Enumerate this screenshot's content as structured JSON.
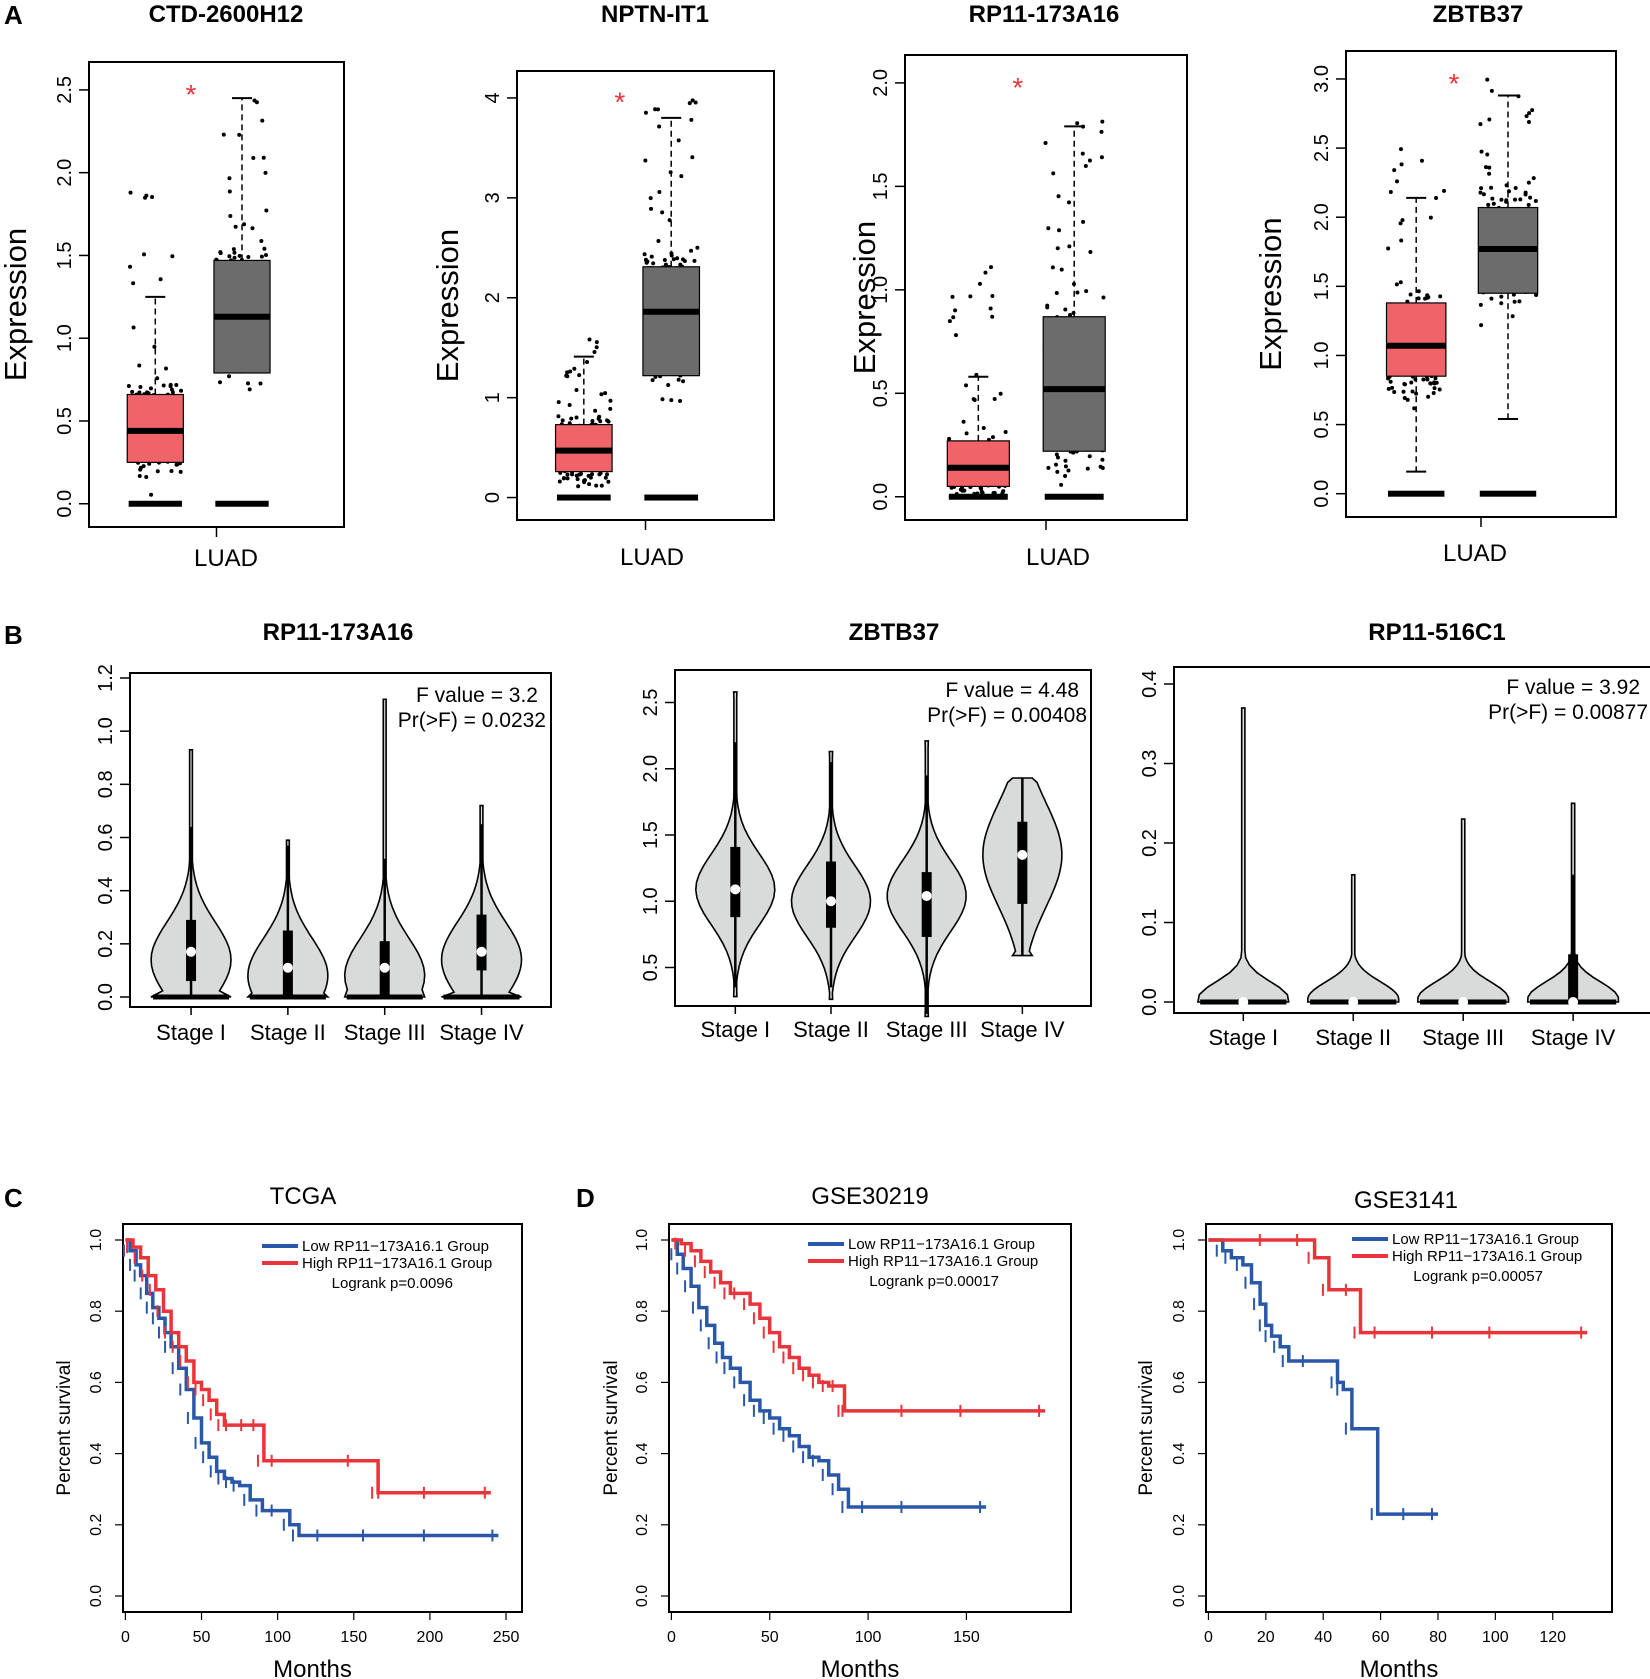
{
  "panel_letters": [
    "A",
    "B",
    "C",
    "D"
  ],
  "colors": {
    "tumor": "#f06469",
    "normal": "#6c6c6c",
    "violin": "#d9dada",
    "low_group": "#2a58a8",
    "high_group": "#e8343a",
    "star": "#e8343a"
  },
  "chart_data": [
    {
      "type": "box",
      "title": "CTD-2600H12",
      "xlabel": "LUAD",
      "ylabel": "Expression",
      "ylim": [
        0,
        2.5
      ],
      "yticks": [
        "0.0",
        "0.5",
        "1.0",
        "1.5",
        "2.0",
        "2.5"
      ],
      "significance": "*",
      "boxes": [
        {
          "group": "Tumor",
          "q1": 0.25,
          "median": 0.44,
          "q3": 0.66,
          "whisker_high": 1.25,
          "max_outlier": 1.95
        },
        {
          "group": "Normal",
          "q1": 0.79,
          "median": 1.13,
          "q3": 1.47,
          "whisker_high": 2.45,
          "max_outlier": 2.45
        }
      ]
    },
    {
      "type": "box",
      "title": "NPTN-IT1",
      "xlabel": "LUAD",
      "ylabel": "Expression",
      "ylim": [
        0,
        4
      ],
      "yticks": [
        "0",
        "1",
        "2",
        "3",
        "4"
      ],
      "significance": "*",
      "boxes": [
        {
          "group": "Tumor",
          "q1": 0.26,
          "median": 0.47,
          "q3": 0.73,
          "whisker_high": 1.41,
          "max_outlier": 1.64
        },
        {
          "group": "Normal",
          "q1": 1.22,
          "median": 1.86,
          "q3": 2.31,
          "whisker_high": 3.8,
          "max_outlier": 4.0
        }
      ]
    },
    {
      "type": "box",
      "title": "RP11-173A16",
      "xlabel": "LUAD",
      "ylabel": "Expression",
      "ylim": [
        0,
        2.0
      ],
      "yticks": [
        "0.0",
        "0.5",
        "1.0",
        "1.5",
        "2.0"
      ],
      "significance": "*",
      "boxes": [
        {
          "group": "Tumor",
          "q1": 0.05,
          "median": 0.14,
          "q3": 0.27,
          "whisker_high": 0.58,
          "max_outlier": 1.12
        },
        {
          "group": "Normal",
          "q1": 0.22,
          "median": 0.52,
          "q3": 0.87,
          "whisker_high": 1.79,
          "max_outlier": 1.9
        }
      ]
    },
    {
      "type": "box",
      "title": "ZBTB37",
      "xlabel": "LUAD",
      "ylabel": "Expression",
      "ylim": [
        0,
        3.0
      ],
      "yticks": [
        "0.0",
        "0.5",
        "1.0",
        "1.5",
        "2.0",
        "2.5",
        "3.0"
      ],
      "significance": "*",
      "boxes": [
        {
          "group": "Tumor",
          "q1": 0.85,
          "median": 1.07,
          "q3": 1.38,
          "whisker_low": 0.16,
          "whisker_high": 2.14,
          "max_outlier": 2.56
        },
        {
          "group": "Normal",
          "q1": 1.45,
          "median": 1.77,
          "q3": 2.07,
          "whisker_low": 0.54,
          "whisker_high": 2.88,
          "max_outlier": 3.02
        }
      ]
    },
    {
      "type": "violin",
      "title": "RP11-173A16",
      "f_value": "F value = 3.2",
      "p_value": "Pr(>F) = 0.0232",
      "ylim": [
        0,
        1.2
      ],
      "yticks": [
        "0.0",
        "0.2",
        "0.4",
        "0.6",
        "0.8",
        "1.0",
        "1.2"
      ],
      "categories": [
        "Stage I",
        "Stage II",
        "Stage III",
        "Stage IV"
      ],
      "violins": [
        {
          "min": 0.0,
          "max": 0.93,
          "median": 0.17,
          "q1": 0.06,
          "q3": 0.29,
          "whisker_high": 0.64
        },
        {
          "min": 0.0,
          "max": 0.59,
          "median": 0.11,
          "q1": 0.0,
          "q3": 0.25,
          "whisker_high": 0.57
        },
        {
          "min": 0.0,
          "max": 1.12,
          "median": 0.11,
          "q1": 0.0,
          "q3": 0.21,
          "whisker_high": 0.52
        },
        {
          "min": 0.0,
          "max": 0.72,
          "median": 0.17,
          "q1": 0.1,
          "q3": 0.31,
          "whisker_high": 0.65
        }
      ]
    },
    {
      "type": "violin",
      "title": "ZBTB37",
      "f_value": "F value = 4.48",
      "p_value": "Pr(>F) = 0.00408",
      "ylim": [
        0.3,
        2.7
      ],
      "yticks": [
        "0.5",
        "1.0",
        "1.5",
        "2.0",
        "2.5"
      ],
      "categories": [
        "Stage I",
        "Stage II",
        "Stage III",
        "Stage IV"
      ],
      "violins": [
        {
          "min": 0.28,
          "max": 2.58,
          "median": 1.09,
          "q1": 0.88,
          "q3": 1.41,
          "whisker_low": 0.35,
          "whisker_high": 2.2
        },
        {
          "min": 0.26,
          "max": 2.13,
          "median": 1.0,
          "q1": 0.8,
          "q3": 1.3,
          "whisker_low": 0.35,
          "whisker_high": 2.05
        },
        {
          "min": 0.13,
          "max": 2.21,
          "median": 1.04,
          "q1": 0.73,
          "q3": 1.22,
          "whisker_low": 0.2,
          "whisker_high": 1.95
        },
        {
          "min": 0.59,
          "max": 1.93,
          "median": 1.35,
          "q1": 0.98,
          "q3": 1.6,
          "whisker_low": 0.59,
          "whisker_high": 1.93
        }
      ]
    },
    {
      "type": "violin",
      "title": "RP11-516C1",
      "f_value": "F value = 3.92",
      "p_value": "Pr(>F) = 0.00877",
      "ylim": [
        0,
        0.4
      ],
      "yticks": [
        "0.0",
        "0.1",
        "0.2",
        "0.3",
        "0.4"
      ],
      "categories": [
        "Stage I",
        "Stage II",
        "Stage III",
        "Stage IV"
      ],
      "violins": [
        {
          "min": 0.0,
          "max": 0.37,
          "median": 0.0,
          "q1": 0.0,
          "q3": 0.0,
          "whisker_high": 0.0
        },
        {
          "min": 0.0,
          "max": 0.16,
          "median": 0.0,
          "q1": 0.0,
          "q3": 0.0,
          "whisker_high": 0.0
        },
        {
          "min": 0.0,
          "max": 0.23,
          "median": 0.0,
          "q1": 0.0,
          "q3": 0.0,
          "whisker_high": 0.0
        },
        {
          "min": 0.0,
          "max": 0.25,
          "median": 0.0,
          "q1": 0.0,
          "q3": 0.06,
          "whisker_high": 0.16
        }
      ]
    },
    {
      "type": "line",
      "subtype": "kaplan-meier",
      "title": "TCGA",
      "xlabel": "Months",
      "ylabel": "Percent survival",
      "xlim": [
        0,
        250
      ],
      "ylim": [
        0,
        1
      ],
      "xticks": [
        "0",
        "50",
        "100",
        "150",
        "200",
        "250"
      ],
      "yticks": [
        "0.0",
        "0.2",
        "0.4",
        "0.6",
        "0.8",
        "1.0"
      ],
      "logrank": "Logrank p=0.0096",
      "series": [
        {
          "name": "Low RP11−173A16.1 Group",
          "times": [
            0,
            3,
            7,
            10,
            14,
            18,
            22,
            26,
            30,
            35,
            40,
            45,
            50,
            55,
            60,
            65,
            70,
            75,
            82,
            90,
            100,
            108,
            114,
            130,
            160,
            200,
            245
          ],
          "survival": [
            1.0,
            0.97,
            0.93,
            0.9,
            0.85,
            0.81,
            0.78,
            0.74,
            0.7,
            0.64,
            0.58,
            0.5,
            0.43,
            0.39,
            0.35,
            0.33,
            0.32,
            0.31,
            0.27,
            0.24,
            0.24,
            0.2,
            0.17,
            0.17,
            0.17,
            0.17,
            0.17
          ]
        },
        {
          "name": "High RP11−173A16.1 Group",
          "times": [
            0,
            5,
            10,
            15,
            20,
            25,
            30,
            35,
            40,
            45,
            50,
            55,
            60,
            65,
            70,
            80,
            88,
            91,
            100,
            150,
            166,
            170,
            200,
            240
          ],
          "survival": [
            1.0,
            0.98,
            0.95,
            0.9,
            0.86,
            0.8,
            0.74,
            0.7,
            0.66,
            0.6,
            0.58,
            0.55,
            0.51,
            0.48,
            0.48,
            0.48,
            0.48,
            0.38,
            0.38,
            0.38,
            0.29,
            0.29,
            0.29,
            0.29
          ]
        }
      ]
    },
    {
      "type": "line",
      "subtype": "kaplan-meier",
      "title": "GSE30219",
      "xlabel": "Months",
      "ylabel": "Percent survival",
      "xlim": [
        0,
        195
      ],
      "ylim": [
        0,
        1
      ],
      "xticks": [
        "0",
        "50",
        "100",
        "150"
      ],
      "yticks": [
        "0.0",
        "0.2",
        "0.4",
        "0.6",
        "0.8",
        "1.0"
      ],
      "logrank": "Logrank p=0.00017",
      "series": [
        {
          "name": "Low RP11−173A16.1 Group",
          "times": [
            0,
            3,
            6,
            10,
            14,
            18,
            22,
            26,
            30,
            35,
            40,
            45,
            50,
            55,
            60,
            65,
            70,
            75,
            80,
            85,
            90,
            100,
            120,
            160
          ],
          "survival": [
            1.0,
            0.96,
            0.92,
            0.87,
            0.81,
            0.76,
            0.71,
            0.67,
            0.64,
            0.6,
            0.55,
            0.52,
            0.5,
            0.47,
            0.45,
            0.42,
            0.39,
            0.38,
            0.34,
            0.3,
            0.25,
            0.25,
            0.25,
            0.25
          ]
        },
        {
          "name": "High RP11−173A16.1 Group",
          "times": [
            0,
            5,
            10,
            15,
            20,
            25,
            30,
            35,
            40,
            45,
            50,
            55,
            60,
            65,
            70,
            75,
            80,
            85,
            88,
            90,
            120,
            150,
            190
          ],
          "survival": [
            1.0,
            0.99,
            0.97,
            0.94,
            0.91,
            0.88,
            0.85,
            0.85,
            0.82,
            0.78,
            0.74,
            0.7,
            0.67,
            0.64,
            0.62,
            0.6,
            0.59,
            0.59,
            0.52,
            0.52,
            0.52,
            0.52,
            0.52
          ]
        }
      ]
    },
    {
      "type": "line",
      "subtype": "kaplan-meier",
      "title": "GSE3141",
      "xlabel": "Months",
      "ylabel": "Percent survival",
      "xlim": [
        0,
        135
      ],
      "ylim": [
        0,
        1
      ],
      "xticks": [
        "0",
        "20",
        "40",
        "60",
        "80",
        "100",
        "120"
      ],
      "yticks": [
        "0.0",
        "0.2",
        "0.4",
        "0.6",
        "0.8",
        "1.0"
      ],
      "logrank": "Logrank p=0.00057",
      "series": [
        {
          "name": "Low RP11−173A16.1 Group",
          "times": [
            0,
            5,
            8,
            12,
            15,
            18,
            20,
            22,
            25,
            28,
            35,
            45,
            47,
            50,
            59,
            70,
            80
          ],
          "survival": [
            1.0,
            0.97,
            0.95,
            0.93,
            0.88,
            0.82,
            0.76,
            0.73,
            0.7,
            0.66,
            0.66,
            0.6,
            0.58,
            0.47,
            0.23,
            0.23,
            0.23
          ]
        },
        {
          "name": "High RP11−173A16.1 Group",
          "times": [
            0,
            20,
            33,
            37,
            42,
            50,
            53,
            60,
            80,
            100,
            132
          ],
          "survival": [
            1.0,
            1.0,
            1.0,
            0.95,
            0.86,
            0.86,
            0.74,
            0.74,
            0.74,
            0.74,
            0.74
          ]
        }
      ]
    }
  ]
}
